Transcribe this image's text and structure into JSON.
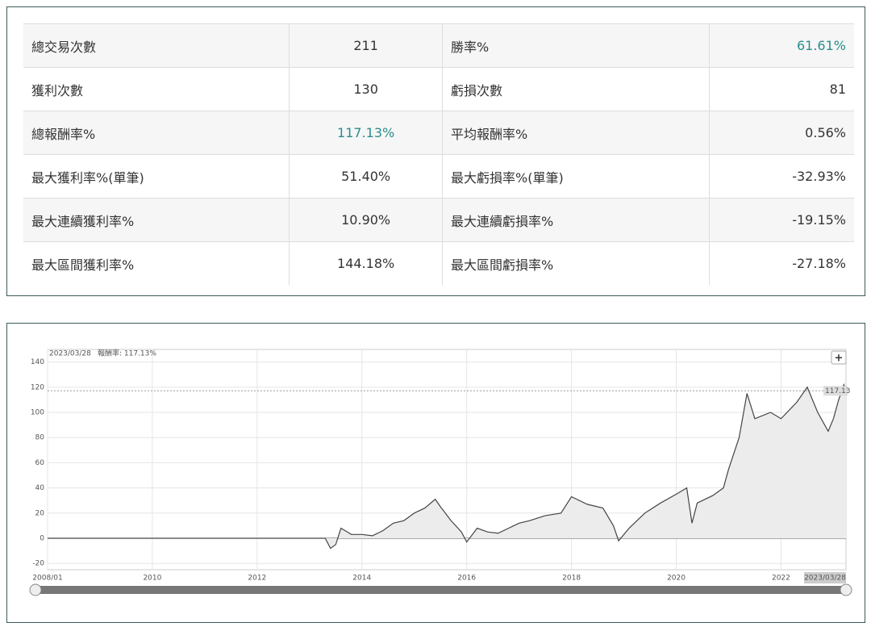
{
  "table": {
    "rows": [
      [
        "總交易次數",
        "211",
        "勝率%",
        "61.61%"
      ],
      [
        "獲利次數",
        "130",
        "虧損次數",
        "81"
      ],
      [
        "總報酬率%",
        "117.13%",
        "平均報酬率%",
        "0.56%"
      ],
      [
        "最大獲利率%(單筆)",
        "51.40%",
        "最大虧損率%(單筆)",
        "-32.93%"
      ],
      [
        "最大連續獲利率%",
        "10.90%",
        "最大連續虧損率%",
        "-19.15%"
      ],
      [
        "最大區間獲利率%",
        "144.18%",
        "最大區間虧損率%",
        "-27.18%"
      ]
    ]
  },
  "chart_data": {
    "type": "line",
    "tooltip_date": "2023/03/28",
    "tooltip_label": "報酬率: 117.13%",
    "end_date": "2023/03/28",
    "color": "#444444",
    "x": [
      2008.0,
      2013.3,
      2013.4,
      2013.5,
      2013.6,
      2013.8,
      2014.0,
      2014.2,
      2014.4,
      2014.6,
      2014.8,
      2015.0,
      2015.2,
      2015.4,
      2015.5,
      2015.7,
      2015.9,
      2016.0,
      2016.2,
      2016.4,
      2016.6,
      2016.8,
      2017.0,
      2017.2,
      2017.5,
      2017.8,
      2018.0,
      2018.3,
      2018.6,
      2018.8,
      2018.9,
      2019.1,
      2019.4,
      2019.7,
      2020.0,
      2020.2,
      2020.3,
      2020.4,
      2020.7,
      2020.9,
      2021.0,
      2021.2,
      2021.35,
      2021.5,
      2021.8,
      2022.0,
      2022.3,
      2022.5,
      2022.7,
      2022.9,
      2023.0,
      2023.1,
      2023.2,
      2023.24
    ],
    "values": [
      0,
      0,
      -8,
      -5,
      8,
      3,
      3,
      2,
      6,
      12,
      14,
      20,
      24,
      31,
      25,
      14,
      5,
      -3,
      8,
      5,
      4,
      8,
      12,
      14,
      18,
      20,
      33,
      27,
      24,
      10,
      -2,
      8,
      20,
      28,
      35,
      40,
      12,
      28,
      34,
      40,
      55,
      80,
      115,
      95,
      100,
      95,
      108,
      120,
      100,
      85,
      95,
      110,
      122,
      117.13
    ],
    "xlim": [
      2008,
      2023.24
    ],
    "ylim": [
      -25,
      150
    ],
    "yticks": [
      -20,
      0,
      20,
      40,
      60,
      80,
      100,
      120,
      140
    ],
    "xticks": [
      {
        "value": 2008,
        "label": "2008/01"
      },
      2010,
      2012,
      2014,
      2016,
      2018,
      2020,
      2022
    ],
    "grid": true
  }
}
